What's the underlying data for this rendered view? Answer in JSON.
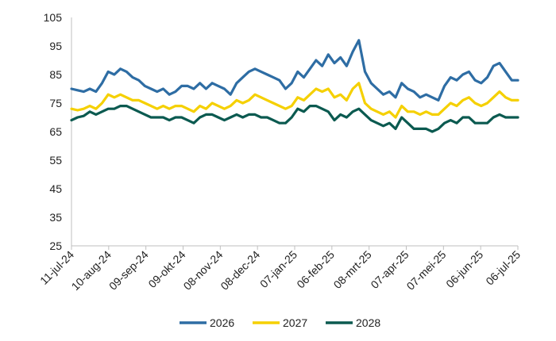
{
  "chart_data": {
    "type": "line",
    "title": "",
    "xlabel": "",
    "ylabel": "",
    "ylim": [
      25,
      105
    ],
    "yticks": [
      25,
      35,
      45,
      55,
      65,
      75,
      85,
      95,
      105
    ],
    "x_tick_labels": [
      "11-jul-24",
      "10-aug-24",
      "09-sep-24",
      "09-okt-24",
      "08-nov-24",
      "08-dec-24",
      "07-jan-25",
      "06-feb-25",
      "08-mrt-25",
      "07-apr-25",
      "07-mei-25",
      "06-jun-25",
      "06-jul-25"
    ],
    "grid": false,
    "legend_position": "bottom",
    "series": [
      {
        "name": "2026",
        "color": "#2E6DA4",
        "x": [
          "2024-07-11",
          "2024-07-16",
          "2024-07-21",
          "2024-07-26",
          "2024-07-31",
          "2024-08-05",
          "2024-08-10",
          "2024-08-15",
          "2024-08-20",
          "2024-08-25",
          "2024-08-30",
          "2024-09-04",
          "2024-09-09",
          "2024-09-14",
          "2024-09-19",
          "2024-09-24",
          "2024-09-29",
          "2024-10-04",
          "2024-10-09",
          "2024-10-14",
          "2024-10-19",
          "2024-10-24",
          "2024-10-29",
          "2024-11-03",
          "2024-11-08",
          "2024-11-13",
          "2024-11-18",
          "2024-11-23",
          "2024-11-28",
          "2024-12-03",
          "2024-12-08",
          "2024-12-13",
          "2024-12-18",
          "2024-12-23",
          "2024-12-28",
          "2025-01-02",
          "2025-01-07",
          "2025-01-12",
          "2025-01-17",
          "2025-01-22",
          "2025-01-27",
          "2025-02-01",
          "2025-02-06",
          "2025-02-11",
          "2025-02-16",
          "2025-02-21",
          "2025-02-26",
          "2025-03-03",
          "2025-03-08",
          "2025-03-13",
          "2025-03-18",
          "2025-03-23",
          "2025-03-28",
          "2025-04-02",
          "2025-04-07",
          "2025-04-12",
          "2025-04-17",
          "2025-04-22",
          "2025-04-27",
          "2025-05-02",
          "2025-05-07",
          "2025-05-12",
          "2025-05-17",
          "2025-05-22",
          "2025-05-27",
          "2025-06-01",
          "2025-06-06",
          "2025-06-11",
          "2025-06-16",
          "2025-06-21",
          "2025-06-26",
          "2025-07-01",
          "2025-07-06",
          "2025-07-11"
        ],
        "values": [
          80,
          79.5,
          79,
          80,
          79,
          82,
          86,
          85,
          87,
          86,
          84,
          83,
          81,
          80,
          79,
          80,
          78,
          79,
          81,
          81,
          80,
          82,
          80,
          82,
          81,
          80,
          78,
          82,
          84,
          86,
          87,
          86,
          85,
          84,
          83,
          80,
          82,
          86,
          84,
          87,
          90,
          88,
          92,
          89,
          91,
          88,
          93,
          97,
          86,
          82,
          80,
          78,
          79,
          77,
          82,
          80,
          79,
          77,
          78,
          77,
          76,
          81,
          84,
          83,
          85,
          86,
          83,
          82,
          84,
          88,
          89,
          86,
          83,
          83
        ]
      },
      {
        "name": "2027",
        "color": "#F5D000",
        "x": [
          "2024-07-11",
          "2024-07-16",
          "2024-07-21",
          "2024-07-26",
          "2024-07-31",
          "2024-08-05",
          "2024-08-10",
          "2024-08-15",
          "2024-08-20",
          "2024-08-25",
          "2024-08-30",
          "2024-09-04",
          "2024-09-09",
          "2024-09-14",
          "2024-09-19",
          "2024-09-24",
          "2024-09-29",
          "2024-10-04",
          "2024-10-09",
          "2024-10-14",
          "2024-10-19",
          "2024-10-24",
          "2024-10-29",
          "2024-11-03",
          "2024-11-08",
          "2024-11-13",
          "2024-11-18",
          "2024-11-23",
          "2024-11-28",
          "2024-12-03",
          "2024-12-08",
          "2024-12-13",
          "2024-12-18",
          "2024-12-23",
          "2024-12-28",
          "2025-01-02",
          "2025-01-07",
          "2025-01-12",
          "2025-01-17",
          "2025-01-22",
          "2025-01-27",
          "2025-02-01",
          "2025-02-06",
          "2025-02-11",
          "2025-02-16",
          "2025-02-21",
          "2025-02-26",
          "2025-03-03",
          "2025-03-08",
          "2025-03-13",
          "2025-03-18",
          "2025-03-23",
          "2025-03-28",
          "2025-04-02",
          "2025-04-07",
          "2025-04-12",
          "2025-04-17",
          "2025-04-22",
          "2025-04-27",
          "2025-05-02",
          "2025-05-07",
          "2025-05-12",
          "2025-05-17",
          "2025-05-22",
          "2025-05-27",
          "2025-06-01",
          "2025-06-06",
          "2025-06-11",
          "2025-06-16",
          "2025-06-21",
          "2025-06-26",
          "2025-07-01",
          "2025-07-06",
          "2025-07-11"
        ],
        "values": [
          73,
          72.5,
          73,
          74,
          73,
          75,
          78,
          77,
          78,
          77,
          76,
          76,
          75,
          74,
          73,
          74,
          73,
          74,
          74,
          73,
          72,
          74,
          73,
          75,
          74,
          73,
          74,
          76,
          75,
          76,
          78,
          77,
          76,
          75,
          74,
          73,
          74,
          77,
          76,
          78,
          80,
          79,
          80,
          77,
          78,
          76,
          80,
          82,
          75,
          73,
          72,
          71,
          72,
          70,
          74,
          72,
          72,
          71,
          72,
          71,
          71,
          73,
          75,
          74,
          76,
          77,
          75,
          74,
          75,
          77,
          79,
          77,
          76,
          76
        ]
      },
      {
        "name": "2028",
        "color": "#0B5A50",
        "x": [
          "2024-07-11",
          "2024-07-16",
          "2024-07-21",
          "2024-07-26",
          "2024-07-31",
          "2024-08-05",
          "2024-08-10",
          "2024-08-15",
          "2024-08-20",
          "2024-08-25",
          "2024-08-30",
          "2024-09-04",
          "2024-09-09",
          "2024-09-14",
          "2024-09-19",
          "2024-09-24",
          "2024-09-29",
          "2024-10-04",
          "2024-10-09",
          "2024-10-14",
          "2024-10-19",
          "2024-10-24",
          "2024-10-29",
          "2024-11-03",
          "2024-11-08",
          "2024-11-13",
          "2024-11-18",
          "2024-11-23",
          "2024-11-28",
          "2024-12-03",
          "2024-12-08",
          "2024-12-13",
          "2024-12-18",
          "2024-12-23",
          "2024-12-28",
          "2025-01-02",
          "2025-01-07",
          "2025-01-12",
          "2025-01-17",
          "2025-01-22",
          "2025-01-27",
          "2025-02-01",
          "2025-02-06",
          "2025-02-11",
          "2025-02-16",
          "2025-02-21",
          "2025-02-26",
          "2025-03-03",
          "2025-03-08",
          "2025-03-13",
          "2025-03-18",
          "2025-03-23",
          "2025-03-28",
          "2025-04-02",
          "2025-04-07",
          "2025-04-12",
          "2025-04-17",
          "2025-04-22",
          "2025-04-27",
          "2025-05-02",
          "2025-05-07",
          "2025-05-12",
          "2025-05-17",
          "2025-05-22",
          "2025-05-27",
          "2025-06-01",
          "2025-06-06",
          "2025-06-11",
          "2025-06-16",
          "2025-06-21",
          "2025-06-26",
          "2025-07-01",
          "2025-07-06",
          "2025-07-11"
        ],
        "values": [
          69,
          70,
          70.5,
          72,
          71,
          72,
          73,
          73,
          74,
          74,
          73,
          72,
          71,
          70,
          70,
          70,
          69,
          70,
          70,
          69,
          68,
          70,
          71,
          71,
          70,
          69,
          70,
          71,
          70,
          71,
          71,
          70,
          70,
          69,
          68,
          68,
          70,
          73,
          72,
          74,
          74,
          73,
          72,
          69,
          71,
          70,
          72,
          73,
          71,
          69,
          68,
          67,
          68,
          66,
          70,
          68,
          66,
          66,
          66,
          65,
          66,
          68,
          69,
          68,
          70,
          70,
          68,
          68,
          68,
          70,
          71,
          70,
          70,
          70
        ]
      }
    ]
  }
}
